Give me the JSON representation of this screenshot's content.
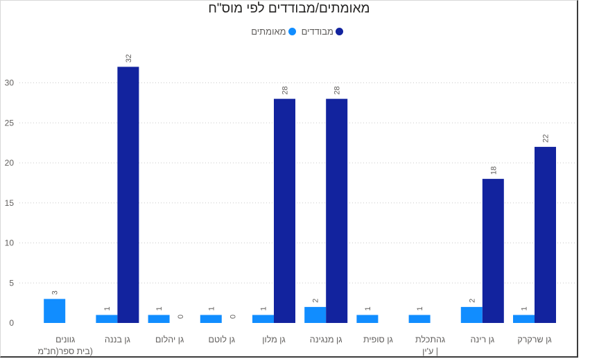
{
  "chart_data": {
    "type": "bar",
    "title": "מאומתים/מבודדים לפי מוס\"ח",
    "categories": [
      "גן שרקרק",
      "גן רינה",
      "גהתכלת | ע'ין",
      "גן סופית",
      "גן מנגינה",
      "גן מלון",
      "גן לוטם",
      "גן יהלום",
      "גן בננה",
      "גוונים (בית ספר(חנ\"מ"
    ],
    "category_lines": [
      [
        "גן שרקרק"
      ],
      [
        "גן רינה"
      ],
      [
        "גהתכלת",
        "| ע'ין"
      ],
      [
        "גן סופית"
      ],
      [
        "גן מנגינה"
      ],
      [
        "גן מלון"
      ],
      [
        "גן לוטם"
      ],
      [
        "גן יהלום"
      ],
      [
        "גן בננה"
      ],
      [
        "גוונים",
        "(בית ספר(חנ\"מ"
      ]
    ],
    "series": [
      {
        "name": "מאומתים",
        "color": "#118dff",
        "values": [
          1,
          2,
          1,
          1,
          2,
          1,
          1,
          1,
          1,
          3
        ]
      },
      {
        "name": "מבודדים",
        "color": "#12239e",
        "values": [
          22,
          18,
          null,
          null,
          28,
          28,
          0,
          0,
          32,
          null
        ]
      }
    ],
    "yticks": [
      0,
      5,
      10,
      15,
      20,
      25,
      30
    ],
    "ylim": [
      0,
      35
    ],
    "grid": true,
    "legend_position": "top-center",
    "direction": "rtl"
  }
}
